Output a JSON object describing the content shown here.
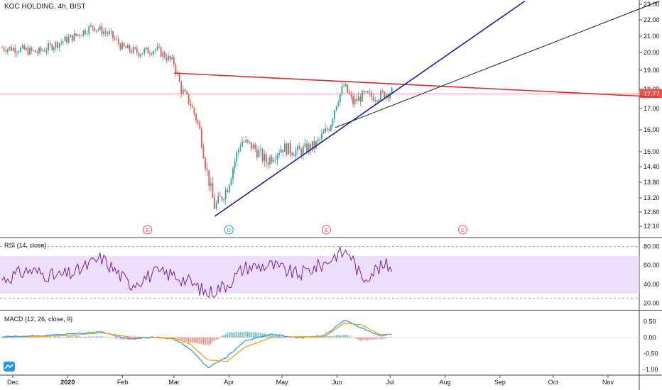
{
  "chart_data": {
    "type": "candlestick",
    "title": "KOC HOLDING, 4h, BIST",
    "price_axis": {
      "ticks": [
        "23.00",
        "22.00",
        "21.00",
        "20.00",
        "19.00",
        "18.00",
        "17.00",
        "16.00",
        "15.00",
        "14.40",
        "13.80",
        "13.20",
        "12.60",
        "12.10"
      ],
      "current_value": "17.77"
    },
    "time_axis": {
      "ticks": [
        "Dec",
        "2020",
        "Feb",
        "Mar",
        "Apr",
        "May",
        "Jun",
        "Jul",
        "Aug",
        "Sep",
        "Oct",
        "Nov"
      ]
    },
    "price_series": {
      "x": [
        "2019-11-25",
        "2019-12-05",
        "2019-12-15",
        "2019-12-25",
        "2020-01-05",
        "2020-01-15",
        "2020-01-25",
        "2020-02-01",
        "2020-02-10",
        "2020-02-20",
        "2020-03-01",
        "2020-03-05",
        "2020-03-10",
        "2020-03-15",
        "2020-03-19",
        "2020-03-24",
        "2020-03-31",
        "2020-04-08",
        "2020-04-15",
        "2020-04-22",
        "2020-05-01",
        "2020-05-10",
        "2020-05-20",
        "2020-05-28",
        "2020-06-01",
        "2020-06-05",
        "2020-06-10",
        "2020-06-16",
        "2020-06-22",
        "2020-06-29",
        "2020-07-03"
      ],
      "close": [
        20.3,
        20.2,
        20.0,
        20.5,
        21.0,
        21.6,
        21.1,
        20.3,
        20.0,
        20.2,
        19.4,
        18.0,
        17.3,
        16.2,
        14.4,
        12.8,
        13.6,
        15.5,
        15.2,
        14.6,
        15.2,
        15.0,
        15.3,
        16.2,
        17.4,
        18.2,
        17.3,
        17.7,
        17.6,
        17.8,
        17.9
      ]
    },
    "events": [
      "E",
      "D",
      "E",
      "E"
    ],
    "trendlines": [
      {
        "color": "#d32f2f",
        "from": [
          "2020-03-01",
          18.85
        ],
        "to": [
          "2020-11-30",
          17.6
        ]
      },
      {
        "color": "#1a1aa8",
        "from": [
          "2020-03-24",
          12.45
        ],
        "to": [
          "2020-09-15",
          23.2
        ]
      },
      {
        "color": "#131722",
        "from": [
          "2020-05-31",
          16.1
        ],
        "to": [
          "2020-11-30",
          23.2
        ]
      }
    ],
    "rsi": {
      "label": "RSI (14, close)",
      "ticks": [
        "80.00",
        "60.00",
        "40.00",
        "20.00"
      ],
      "band": [
        30,
        70
      ],
      "x": [
        "2019-11-25",
        "2019-12-10",
        "2019-12-25",
        "2020-01-05",
        "2020-01-20",
        "2020-02-05",
        "2020-02-20",
        "2020-03-01",
        "2020-03-10",
        "2020-03-20",
        "2020-03-31",
        "2020-04-10",
        "2020-04-25",
        "2020-05-10",
        "2020-05-25",
        "2020-06-01",
        "2020-06-08",
        "2020-06-15",
        "2020-06-22",
        "2020-06-29",
        "2020-07-03"
      ],
      "values": [
        45,
        55,
        48,
        52,
        68,
        40,
        52,
        50,
        42,
        30,
        40,
        58,
        60,
        50,
        62,
        72,
        74,
        45,
        55,
        60,
        58
      ]
    },
    "macd": {
      "label": "MACD (12, 26, close, 9)",
      "ticks": [
        "0.50",
        "0.00",
        "-0.50",
        "-1.00"
      ],
      "x": [
        "2019-11-25",
        "2019-12-15",
        "2020-01-05",
        "2020-01-20",
        "2020-02-05",
        "2020-02-20",
        "2020-03-01",
        "2020-03-10",
        "2020-03-20",
        "2020-03-31",
        "2020-04-10",
        "2020-04-25",
        "2020-05-10",
        "2020-05-25",
        "2020-06-05",
        "2020-06-15",
        "2020-06-25",
        "2020-07-03"
      ],
      "macd": [
        0.02,
        0.05,
        0.12,
        0.18,
        -0.05,
        0.02,
        -0.05,
        -0.35,
        -0.95,
        -0.6,
        -0.1,
        0.1,
        0.0,
        0.05,
        0.55,
        0.3,
        0.05,
        0.12
      ],
      "signal": [
        0.0,
        0.03,
        0.08,
        0.15,
        0.02,
        0.0,
        -0.02,
        -0.2,
        -0.7,
        -0.75,
        -0.3,
        0.0,
        0.03,
        0.02,
        0.45,
        0.4,
        0.1,
        0.1
      ]
    }
  },
  "colors": {
    "up": "#26a69a",
    "down": "#ef5350",
    "rsi": "#7b1fa2",
    "rsi_band": "#e8d7fb",
    "macd": "#2196f3",
    "signal": "#ff9800",
    "red_line": "#d32f2f",
    "blue_line": "#1a1aa8",
    "black_line": "#131722"
  }
}
